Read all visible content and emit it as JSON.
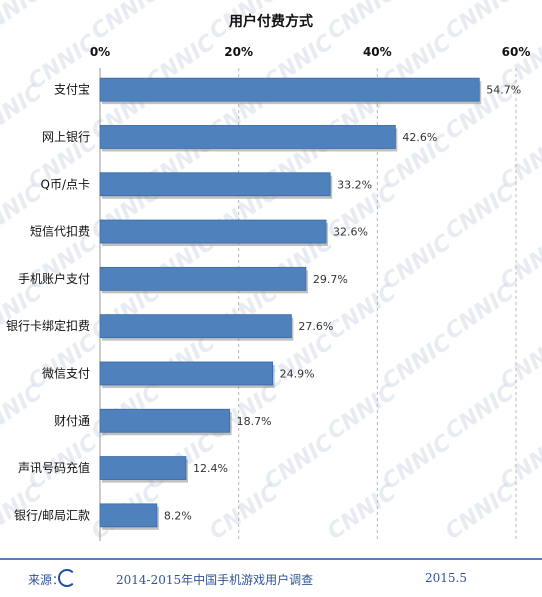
{
  "watermark": "CNNIC",
  "chart_data": {
    "type": "bar",
    "orientation": "horizontal",
    "title": "用户付费方式",
    "categories": [
      "支付宝",
      "网上银行",
      "Q币/点卡",
      "短信代扣费",
      "手机账户支付",
      "银行卡绑定扣费",
      "微信支付",
      "财付通",
      "声讯号码充值",
      "银行/邮局汇款"
    ],
    "values": [
      54.7,
      42.6,
      33.2,
      32.6,
      29.7,
      27.6,
      24.9,
      18.7,
      12.4,
      8.2
    ],
    "value_labels": [
      "54.7%",
      "42.6%",
      "33.2%",
      "32.6%",
      "29.7%",
      "27.6%",
      "24.9%",
      "18.7%",
      "12.4%",
      "8.2%"
    ],
    "xlim": [
      0,
      60
    ],
    "ticks": [
      0,
      20,
      40,
      60
    ],
    "tick_labels": [
      "0%",
      "20%",
      "40%",
      "60%"
    ],
    "tick_position": "top",
    "grid": true,
    "bar_color": "#4f81bd"
  },
  "footer": {
    "source_label": "来源：",
    "logo_text": "CNNIC",
    "source_text": "2014-2015年中国手机游戏用户调查",
    "date": "2015.5"
  }
}
